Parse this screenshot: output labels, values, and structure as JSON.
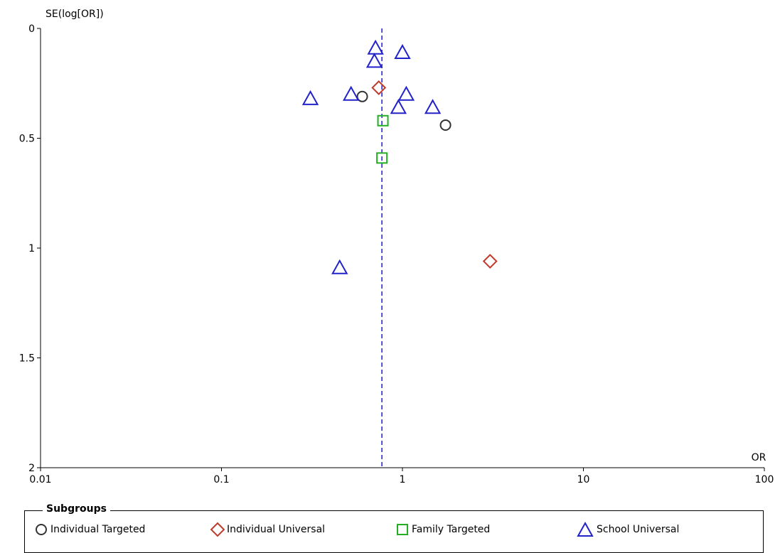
{
  "chart_data": {
    "type": "scatter",
    "title": "",
    "xlabel": "OR",
    "ylabel": "SE(log[OR])",
    "x_scale": "log",
    "xlim": [
      0.01,
      100
    ],
    "ylim": [
      0,
      2
    ],
    "y_inverted": true,
    "x_ticks": [
      "0.01",
      "0.1",
      "1",
      "10",
      "100"
    ],
    "y_ticks": [
      "0",
      "0.5",
      "1",
      "1.5",
      "2"
    ],
    "pooled_estimate": 0.77,
    "grid": false,
    "legend": {
      "title": "Subgroups",
      "position": "bottom"
    },
    "series": [
      {
        "name": "Individual Targeted",
        "marker": "circle",
        "color": "#333333",
        "points": [
          {
            "x": 0.6,
            "y": 0.31
          },
          {
            "x": 1.73,
            "y": 0.44
          }
        ]
      },
      {
        "name": "Individual Universal",
        "marker": "diamond",
        "color": "#c0392b",
        "points": [
          {
            "x": 0.74,
            "y": 0.27
          },
          {
            "x": 3.05,
            "y": 1.06
          }
        ]
      },
      {
        "name": "Family Targeted",
        "marker": "square",
        "color": "#22b022",
        "points": [
          {
            "x": 0.78,
            "y": 0.42
          },
          {
            "x": 0.77,
            "y": 0.59
          }
        ]
      },
      {
        "name": "School Universal",
        "marker": "triangle",
        "color": "#2222cc",
        "points": [
          {
            "x": 0.71,
            "y": 0.09
          },
          {
            "x": 1.0,
            "y": 0.11
          },
          {
            "x": 0.7,
            "y": 0.15
          },
          {
            "x": 0.31,
            "y": 0.32
          },
          {
            "x": 0.52,
            "y": 0.3
          },
          {
            "x": 1.05,
            "y": 0.3
          },
          {
            "x": 0.95,
            "y": 0.36
          },
          {
            "x": 1.47,
            "y": 0.36
          },
          {
            "x": 0.45,
            "y": 1.09
          }
        ]
      }
    ]
  }
}
